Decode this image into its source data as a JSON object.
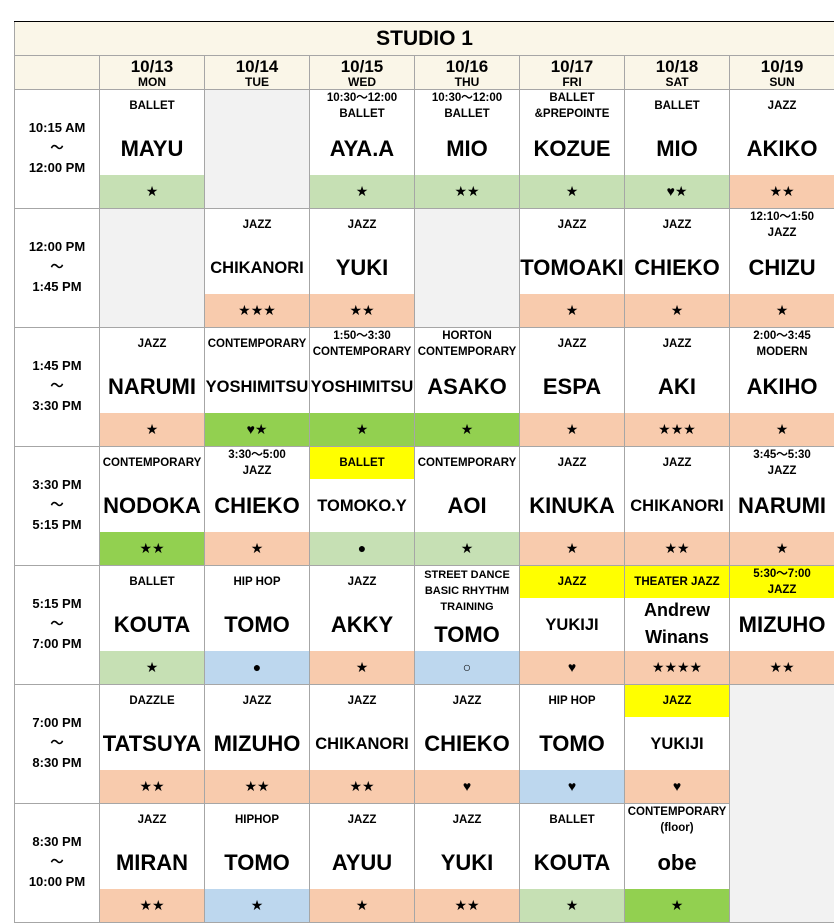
{
  "title": "STUDIO 1",
  "colors": {
    "light_green": "#c6e0b4",
    "green": "#92d050",
    "orange": "#f8cbad",
    "blue": "#bdd7ee",
    "yellow": "#ffff00",
    "empty": "#f2f2f2"
  },
  "days": [
    {
      "date": "10/13",
      "day": "MON"
    },
    {
      "date": "10/14",
      "day": "TUE"
    },
    {
      "date": "10/15",
      "day": "WED"
    },
    {
      "date": "10/16",
      "day": "THU"
    },
    {
      "date": "10/17",
      "day": "FRI"
    },
    {
      "date": "10/18",
      "day": "SAT"
    },
    {
      "date": "10/19",
      "day": "SUN"
    }
  ],
  "rows": [
    {
      "start": "10:15 AM",
      "sep": "〜",
      "end": "12:00 PM",
      "cells": [
        {
          "label": [
            "BALLET"
          ],
          "name": "MAYU",
          "mark": "★",
          "color": "light_green"
        },
        {
          "empty": true
        },
        {
          "label": [
            "10:30〜12:00",
            "BALLET"
          ],
          "name": "AYA.A",
          "mark": "★",
          "color": "light_green"
        },
        {
          "label": [
            "10:30〜12:00",
            "BALLET"
          ],
          "name": "MIO",
          "mark": "★★",
          "color": "light_green"
        },
        {
          "label": [
            "BALLET",
            "&PREPOINTE"
          ],
          "name": "KOZUE",
          "mark": "★",
          "color": "light_green"
        },
        {
          "label": [
            "BALLET"
          ],
          "name": "MIO",
          "mark": "♥★",
          "color": "light_green"
        },
        {
          "label": [
            "JAZZ"
          ],
          "name": "AKIKO",
          "mark": "★★",
          "color": "orange"
        }
      ]
    },
    {
      "start": "12:00 PM",
      "sep": "〜",
      "end": "1:45 PM",
      "cells": [
        {
          "empty": true
        },
        {
          "label": [
            "JAZZ"
          ],
          "name": "CHIKANORI",
          "mark": "★★★",
          "color": "orange"
        },
        {
          "label": [
            "JAZZ"
          ],
          "name": "YUKI",
          "mark": "★★",
          "color": "orange"
        },
        {
          "empty": true
        },
        {
          "label": [
            "JAZZ"
          ],
          "name": "TOMOAKI",
          "mark": "★",
          "color": "orange"
        },
        {
          "label": [
            "JAZZ"
          ],
          "name": "CHIEKO",
          "mark": "★",
          "color": "orange"
        },
        {
          "label": [
            "12:10〜1:50",
            "JAZZ"
          ],
          "name": "CHIZU",
          "mark": "★",
          "color": "orange"
        }
      ]
    },
    {
      "start": "1:45 PM",
      "sep": "〜",
      "end": "3:30 PM",
      "cells": [
        {
          "label": [
            "JAZZ"
          ],
          "name": "NARUMI",
          "mark": "★",
          "color": "orange"
        },
        {
          "label": [
            "CONTEMPORARY"
          ],
          "name": "YOSHIMITSU",
          "mark": "♥★",
          "color": "green"
        },
        {
          "label": [
            "1:50〜3:30",
            "CONTEMPORARY"
          ],
          "name": "YOSHIMITSU",
          "mark": "★",
          "color": "green"
        },
        {
          "label": [
            "HORTON",
            "CONTEMPORARY"
          ],
          "name": "ASAKO",
          "mark": "★",
          "color": "green"
        },
        {
          "label": [
            "JAZZ"
          ],
          "name": "ESPA",
          "mark": "★",
          "color": "orange"
        },
        {
          "label": [
            "JAZZ"
          ],
          "name": "AKI",
          "mark": "★★★",
          "color": "orange"
        },
        {
          "label": [
            "2:00〜3:45",
            "MODERN"
          ],
          "name": "AKIHO",
          "mark": "★",
          "color": "orange"
        }
      ]
    },
    {
      "start": "3:30 PM",
      "sep": "〜",
      "end": "5:15 PM",
      "cells": [
        {
          "label": [
            "CONTEMPORARY"
          ],
          "name": "NODOKA",
          "mark": "★★",
          "color": "green"
        },
        {
          "label": [
            "3:30〜5:00",
            "JAZZ"
          ],
          "name": "CHIEKO",
          "mark": "★",
          "color": "orange"
        },
        {
          "label": [
            "BALLET"
          ],
          "label_color": "yellow",
          "name": "TOMOKO.Y",
          "mark": "●",
          "color": "light_green"
        },
        {
          "label": [
            "CONTEMPORARY"
          ],
          "name": "AOI",
          "mark": "★",
          "color": "light_green"
        },
        {
          "label": [
            "JAZZ"
          ],
          "name": "KINUKA",
          "mark": "★",
          "color": "orange"
        },
        {
          "label": [
            "JAZZ"
          ],
          "name": "CHIKANORI",
          "mark": "★★",
          "color": "orange"
        },
        {
          "label": [
            "3:45〜5:30",
            "JAZZ"
          ],
          "name": "NARUMI",
          "mark": "★",
          "color": "orange"
        }
      ]
    },
    {
      "start": "5:15 PM",
      "sep": "〜",
      "end": "7:00 PM",
      "cells": [
        {
          "label": [
            "BALLET"
          ],
          "name": "KOUTA",
          "mark": "★",
          "color": "light_green"
        },
        {
          "label": [
            "HIP HOP"
          ],
          "name": "TOMO",
          "mark": "●",
          "color": "blue"
        },
        {
          "label": [
            "JAZZ"
          ],
          "name": "AKKY",
          "mark": "★",
          "color": "orange"
        },
        {
          "label": [
            "STREET DANCE",
            "BASIC RHYTHM",
            "TRAINING"
          ],
          "name": "TOMO",
          "mark": "○",
          "color": "blue"
        },
        {
          "label": [
            "JAZZ"
          ],
          "label_color": "yellow",
          "name": "YUKIJI",
          "mark": "♥",
          "color": "orange"
        },
        {
          "label": [
            "THEATER JAZZ"
          ],
          "label_color": "yellow",
          "name": "Andrew Winans",
          "mark": "★★★★",
          "color": "orange"
        },
        {
          "label": [
            "5:30〜7:00",
            "JAZZ"
          ],
          "label_color": "yellow",
          "name": "MIZUHO",
          "mark": "★★",
          "color": "orange"
        }
      ]
    },
    {
      "start": "7:00 PM",
      "sep": "〜",
      "end": "8:30 PM",
      "cells": [
        {
          "label": [
            "DAZZLE"
          ],
          "name": "TATSUYA",
          "mark": "★★",
          "color": "orange"
        },
        {
          "label": [
            "JAZZ"
          ],
          "name": "MIZUHO",
          "mark": "★★",
          "color": "orange"
        },
        {
          "label": [
            "JAZZ"
          ],
          "name": "CHIKANORI",
          "mark": "★★",
          "color": "orange"
        },
        {
          "label": [
            "JAZZ"
          ],
          "name": "CHIEKO",
          "mark": "♥",
          "color": "orange"
        },
        {
          "label": [
            "HIP HOP"
          ],
          "name": "TOMO",
          "mark": "♥",
          "color": "blue"
        },
        {
          "label": [
            "JAZZ"
          ],
          "label_color": "yellow",
          "name": "YUKIJI",
          "mark": "♥",
          "color": "orange"
        },
        {
          "empty": true,
          "rowspan": 2
        }
      ]
    },
    {
      "start": "8:30 PM",
      "sep": "〜",
      "end": "10:00 PM",
      "cells": [
        {
          "label": [
            "JAZZ"
          ],
          "name": "MIRAN",
          "mark": "★★",
          "color": "orange"
        },
        {
          "label": [
            "HIPHOP"
          ],
          "name": "TOMO",
          "mark": "★",
          "color": "blue"
        },
        {
          "label": [
            "JAZZ"
          ],
          "name": "AYUU",
          "mark": "★",
          "color": "orange"
        },
        {
          "label": [
            "JAZZ"
          ],
          "name": "YUKI",
          "mark": "★★",
          "color": "orange"
        },
        {
          "label": [
            "BALLET"
          ],
          "name": "KOUTA",
          "mark": "★",
          "color": "light_green"
        },
        {
          "label": [
            "CONTEMPORARY",
            "(floor)"
          ],
          "name": "obe",
          "mark": "★",
          "color": "green"
        }
      ]
    }
  ]
}
